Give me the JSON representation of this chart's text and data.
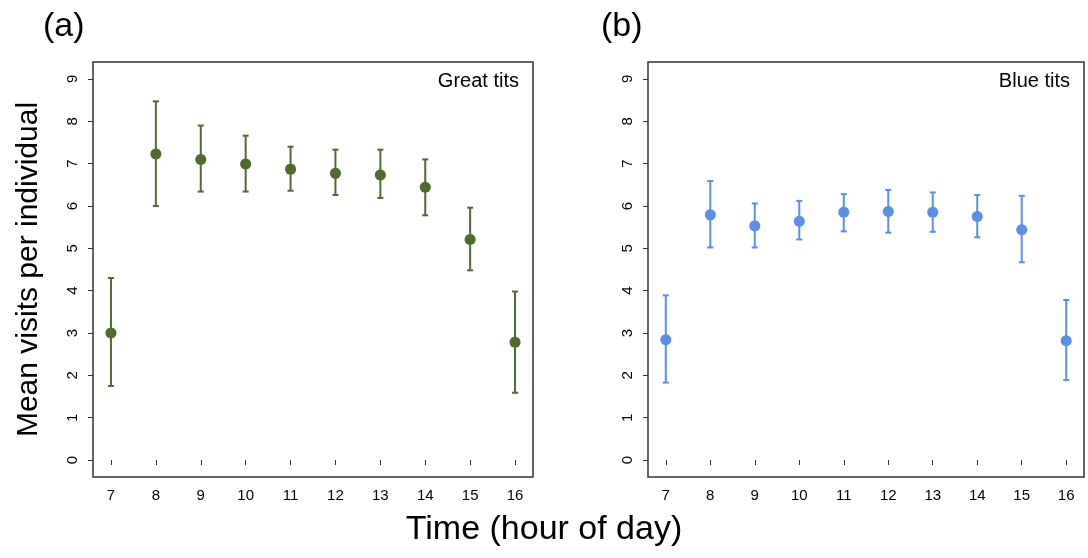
{
  "chart_data": [
    {
      "type": "scatter",
      "title": "(a)",
      "xlabel": "Time (hour of day)",
      "ylabel": "Mean visits per individual",
      "annotations": [
        "Great tits"
      ],
      "marker": "circle",
      "grid": false,
      "xlim": [
        6.6,
        16.4
      ],
      "xticks": [
        7,
        8,
        9,
        10,
        11,
        12,
        13,
        14,
        15,
        16
      ],
      "ylim": [
        -0.4,
        9.4
      ],
      "yticks": [
        0,
        1,
        2,
        3,
        4,
        5,
        6,
        7,
        8,
        9
      ],
      "series": [
        {
          "color": "#4f6b2f",
          "x": [
            7,
            8,
            9,
            10,
            11,
            12,
            13,
            14,
            15,
            16
          ],
          "values": [
            3.0,
            7.23,
            7.1,
            6.99,
            6.87,
            6.77,
            6.73,
            6.44,
            5.21,
            2.78
          ],
          "errors": [
            [
              1.75,
              4.3
            ],
            [
              6.0,
              8.47
            ],
            [
              6.34,
              7.9
            ],
            [
              6.34,
              7.66
            ],
            [
              6.36,
              7.4
            ],
            [
              6.26,
              7.33
            ],
            [
              6.19,
              7.33
            ],
            [
              5.78,
              7.1
            ],
            [
              4.48,
              5.96
            ],
            [
              1.59,
              3.98
            ]
          ]
        }
      ]
    },
    {
      "type": "scatter",
      "title": "(b)",
      "annotations": [
        "Blue tits"
      ],
      "marker": "circle",
      "grid": false,
      "xlim": [
        6.6,
        16.4
      ],
      "xticks": [
        7,
        8,
        9,
        10,
        11,
        12,
        13,
        14,
        15,
        16
      ],
      "ylim": [
        -0.4,
        9.4
      ],
      "yticks": [
        0,
        1,
        2,
        3,
        4,
        5,
        6,
        7,
        8,
        9
      ],
      "series": [
        {
          "color": "#5b8fe8",
          "x": [
            7,
            8,
            9,
            10,
            11,
            12,
            13,
            14,
            15,
            16
          ],
          "values": [
            2.84,
            5.79,
            5.53,
            5.64,
            5.85,
            5.87,
            5.85,
            5.75,
            5.44,
            2.82
          ],
          "errors": [
            [
              1.83,
              3.89
            ],
            [
              5.02,
              6.59
            ],
            [
              5.02,
              6.06
            ],
            [
              5.21,
              6.12
            ],
            [
              5.4,
              6.28
            ],
            [
              5.37,
              6.38
            ],
            [
              5.39,
              6.32
            ],
            [
              5.26,
              6.26
            ],
            [
              4.67,
              6.24
            ],
            [
              1.89,
              3.78
            ]
          ]
        }
      ]
    }
  ]
}
